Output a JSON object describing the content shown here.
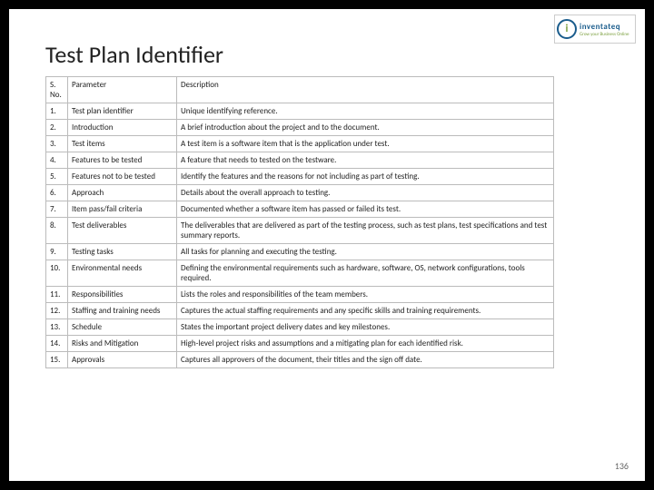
{
  "logo": {
    "initial": "i",
    "brand": "inventateq",
    "tagline": "Grow your Business Online"
  },
  "title": "Test Plan Identifier",
  "columns": {
    "sno": "S. No.",
    "param": "Parameter",
    "desc": "Description"
  },
  "rows": [
    {
      "n": "1.",
      "p": "Test plan identifier",
      "d": "Unique identifying reference."
    },
    {
      "n": "2.",
      "p": "Introduction",
      "d": "A brief introduction about the project and to the document."
    },
    {
      "n": "3.",
      "p": "Test items",
      "d": "A test item is a software item that is the application under test."
    },
    {
      "n": "4.",
      "p": "Features to be tested",
      "d": "A feature that needs to tested on the testware."
    },
    {
      "n": "5.",
      "p": "Features not to be tested",
      "d": "Identify the features and the reasons for not including as part of testing."
    },
    {
      "n": "6.",
      "p": "Approach",
      "d": "Details about the overall approach to testing."
    },
    {
      "n": "7.",
      "p": "Item pass/fail criteria",
      "d": "Documented whether a software item has passed or failed its test."
    },
    {
      "n": "8.",
      "p": "Test deliverables",
      "d": "The deliverables that are delivered as part of the testing process, such as test plans, test specifications and test summary reports."
    },
    {
      "n": "9.",
      "p": "Testing tasks",
      "d": "All tasks for planning and executing the testing."
    },
    {
      "n": "10.",
      "p": "Environmental needs",
      "d": "Defining the environmental requirements such as hardware, software, OS, network configurations, tools required."
    },
    {
      "n": "11.",
      "p": "Responsibilities",
      "d": "Lists the roles and responsibilities of the team members."
    },
    {
      "n": "12.",
      "p": "Staffing and training needs",
      "d": "Captures the actual staffing requirements and any specific skills and training requirements."
    },
    {
      "n": "13.",
      "p": "Schedule",
      "d": "States the important project delivery dates and key milestones."
    },
    {
      "n": "14.",
      "p": "Risks and Mitigation",
      "d": "High-level project risks and assumptions and a mitigating plan for each identified risk."
    },
    {
      "n": "15.",
      "p": "Approvals",
      "d": "Captures all approvers of the document, their titles and the sign off date."
    }
  ],
  "pagenum": "136"
}
